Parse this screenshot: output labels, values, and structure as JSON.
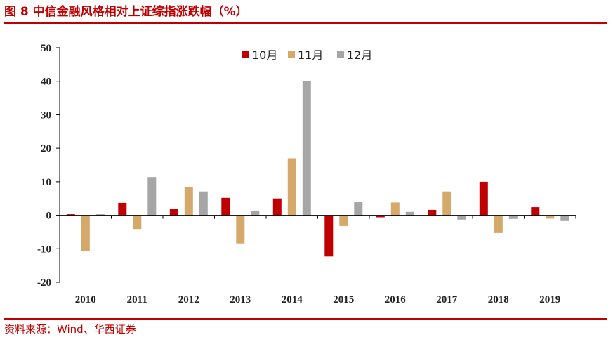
{
  "figure": {
    "title": "图 8 中信金融风格相对上证综指涨跌幅（%）",
    "source": "资料来源：Wind、华西证券"
  },
  "colors": {
    "accent": "#c00000",
    "series_oct": "#c00000",
    "series_nov": "#d4a96a",
    "series_dec": "#a6a6a6"
  },
  "chart_data": {
    "type": "bar",
    "categories": [
      "2010",
      "2011",
      "2012",
      "2013",
      "2014",
      "2015",
      "2016",
      "2017",
      "2018",
      "2019"
    ],
    "series": [
      {
        "name": "10月",
        "values": [
          0.3,
          3.7,
          1.9,
          5.2,
          5.0,
          -12.3,
          -0.6,
          1.6,
          10.0,
          2.4
        ]
      },
      {
        "name": "11月",
        "values": [
          -10.7,
          -4.1,
          8.5,
          -8.4,
          17.0,
          -3.2,
          3.8,
          7.1,
          -5.3,
          -1.0
        ]
      },
      {
        "name": "12月",
        "values": [
          0.3,
          11.4,
          7.1,
          1.4,
          40.0,
          4.1,
          1.0,
          -1.3,
          -1.1,
          -1.5
        ]
      }
    ],
    "yticks": [
      50,
      40,
      30,
      20,
      10,
      0,
      -10,
      -20
    ],
    "ylim": [
      -20,
      50
    ],
    "grid": false,
    "legend_position": "top-center"
  }
}
